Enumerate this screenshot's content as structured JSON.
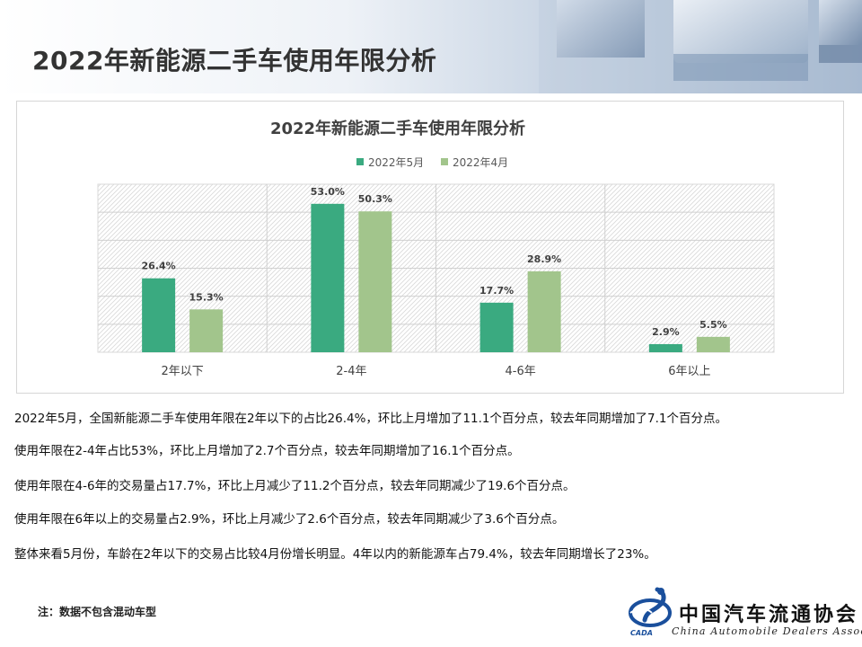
{
  "page": {
    "title": "2022年新能源二手车使用年限分析",
    "footnote": "注：数据不包含混动车型"
  },
  "colors": {
    "series_may": "#3aaa80",
    "series_apr": "#a2c58c",
    "logo_blue": "#1a4f9c"
  },
  "chart_data": {
    "type": "bar",
    "title": "2022年新能源二手车使用年限分析",
    "categories": [
      "2年以下",
      "2-4年",
      "4-6年",
      "6年以上"
    ],
    "series": [
      {
        "name": "2022年5月",
        "values": [
          26.4,
          53.0,
          17.7,
          2.9
        ],
        "labels": [
          "26.4%",
          "53.0%",
          "17.7%",
          "2.9%"
        ]
      },
      {
        "name": "2022年4月",
        "values": [
          15.3,
          50.3,
          28.9,
          5.5
        ],
        "labels": [
          "15.3%",
          "50.3%",
          "28.9%",
          "5.5%"
        ]
      }
    ],
    "ylim": [
      0,
      60
    ],
    "legend_position": "top",
    "grid": true
  },
  "notes": [
    "2022年5月，全国新能源二手车使用年限在2年以下的占比26.4%，环比上月增加了11.1个百分点，较去年同期增加了7.1个百分点。",
    "使用年限在2-4年占比53%，环比上月增加了2.7个百分点，较去年同期增加了16.1个百分点。",
    "使用年限在4-6年的交易量占17.7%，环比上月减少了11.2个百分点，较去年同期减少了19.6个百分点。",
    "使用年限在6年以上的交易量占2.9%，环比上月减少了2.6个百分点，较去年同期减少了3.6个百分点。",
    "整体来看5月份，车龄在2年以下的交易占比较4月份增长明显。4年以内的新能源车占79.4%，较去年同期增长了23%。"
  ],
  "logo": {
    "cn": "中国汽车流通协会",
    "en": "China Automobile Dealers Association",
    "small": "CADA"
  }
}
